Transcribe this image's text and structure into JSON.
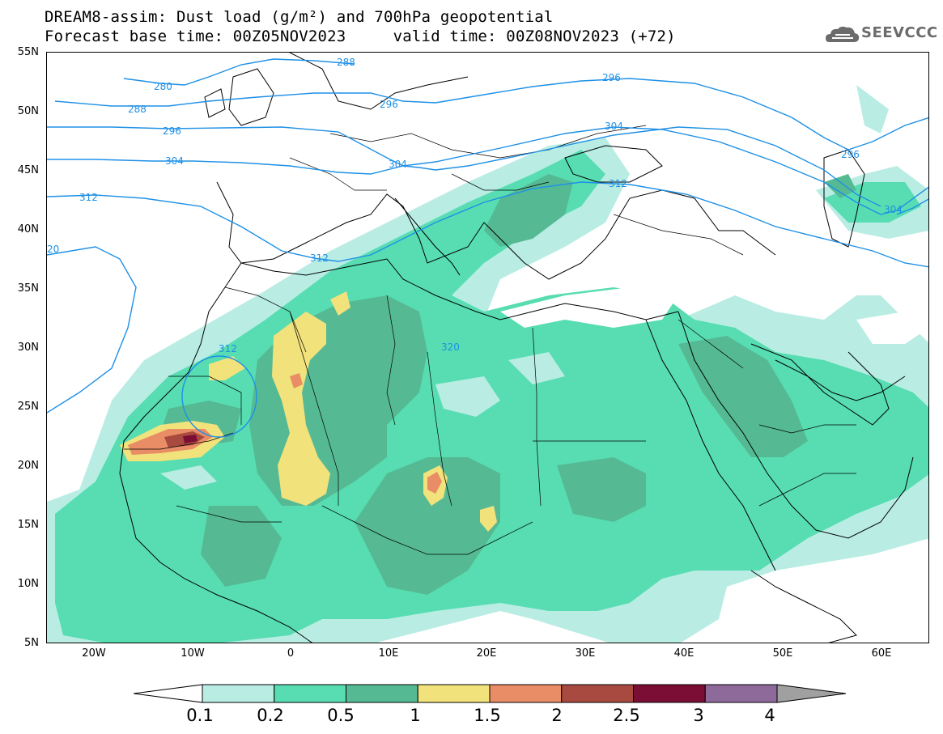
{
  "header": {
    "title_line1": "DREAM8-assim: Dust load (g/m²) and 700hPa geopotential",
    "title_line2": "Forecast base time: 00Z05NOV2023     valid time: 00Z08NOV2023 (+72)",
    "logo_text": "SEEVCCC"
  },
  "map": {
    "lat_labels": [
      "55N",
      "50N",
      "45N",
      "40N",
      "35N",
      "30N",
      "25N",
      "20N",
      "15N",
      "10N",
      "5N"
    ],
    "lon_labels": [
      "20W",
      "10W",
      "0",
      "10E",
      "20E",
      "30E",
      "40E",
      "50E",
      "60E"
    ],
    "contour_labels": [
      "280",
      "288",
      "288",
      "296",
      "296",
      "296",
      "296",
      "304",
      "304",
      "304",
      "304",
      "312",
      "312",
      "312",
      "312",
      "320",
      "20"
    ],
    "colors": {
      "land_line": "#000000",
      "contour": "#1e90e6"
    }
  },
  "colorbar": {
    "labels": [
      "0.1",
      "0.2",
      "0.5",
      "1",
      "1.5",
      "2",
      "2.5",
      "3",
      "4"
    ],
    "colors": [
      "#ffffff",
      "#b9ede4",
      "#57ddb1",
      "#55ba93",
      "#f1e27c",
      "#e88d65",
      "#a84a3f",
      "#7b0e35",
      "#8e6a9a",
      "#a0a0a0"
    ]
  }
}
